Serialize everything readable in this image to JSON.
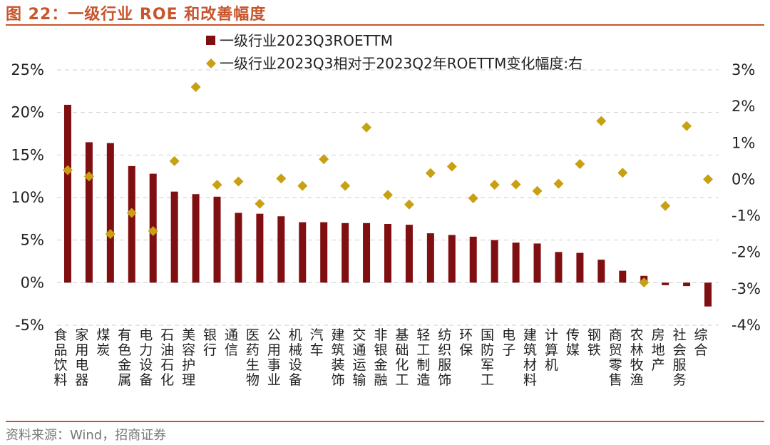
{
  "figure": {
    "title": "图 22：一级行业 ROE 和改善幅度",
    "source": "资料来源：Wind，招商证券"
  },
  "colors": {
    "bar": "#7f0f10",
    "marker": "#c8a012",
    "grid": "#cfcfcf",
    "accent": "#c8552c"
  },
  "chart_data": {
    "type": "bar",
    "categories": [
      "食品饮料",
      "家用电器",
      "煤炭",
      "有色金属",
      "电力设备",
      "石油石化",
      "美容护理",
      "银行",
      "通信",
      "医药生物",
      "公用事业",
      "机械设备",
      "汽车",
      "建筑装饰",
      "交通运输",
      "非银金融",
      "基础化工",
      "轻工制造",
      "纺织服饰",
      "环保",
      "国防军工",
      "电子",
      "建筑材料",
      "计算机",
      "传媒",
      "钢铁",
      "商贸零售",
      "农林牧渔",
      "房地产",
      "社会服务",
      "综合"
    ],
    "series": [
      {
        "name": "一级行业2023Q3ROETTM",
        "axis": "left",
        "kind": "bar",
        "values": [
          20.9,
          16.5,
          16.4,
          13.7,
          12.8,
          10.7,
          10.4,
          10.1,
          8.2,
          8.1,
          7.8,
          7.1,
          7.1,
          7.0,
          7.0,
          6.9,
          6.8,
          5.8,
          5.6,
          5.4,
          5.0,
          4.7,
          4.6,
          3.6,
          3.5,
          2.7,
          1.4,
          0.8,
          -0.3,
          -0.4,
          -2.8
        ]
      },
      {
        "name": "一级行业2023Q3相对于2023Q2年ROETTM变化幅度:右",
        "axis": "right",
        "kind": "scatter",
        "values": [
          0.25,
          0.08,
          -1.5,
          -0.92,
          -1.42,
          0.5,
          2.53,
          -0.15,
          -0.06,
          -0.67,
          0.02,
          -0.18,
          0.55,
          -0.18,
          1.42,
          -0.43,
          -0.69,
          0.17,
          0.35,
          -0.52,
          -0.15,
          -0.14,
          -0.32,
          -0.12,
          0.42,
          1.6,
          0.18,
          -2.83,
          -0.73,
          1.46,
          0.0
        ]
      }
    ],
    "left_axis": {
      "min": -5,
      "max": 25,
      "ticks": [
        "25%",
        "20%",
        "15%",
        "10%",
        "5%",
        "0%",
        "-5%"
      ]
    },
    "right_axis": {
      "min": -4,
      "max": 3,
      "ticks": [
        "3%",
        "2%",
        "1%",
        "0%",
        "-1%",
        "-2%",
        "-3%",
        "-4%"
      ]
    },
    "grid": true,
    "legend_position": "top-center"
  }
}
